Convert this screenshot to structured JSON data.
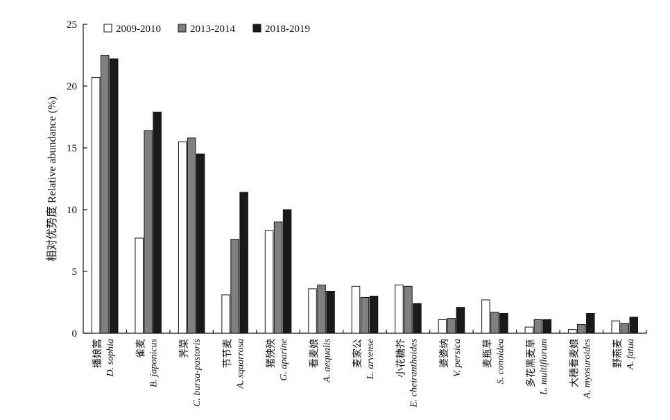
{
  "chart_data": {
    "type": "bar",
    "title": "",
    "ylabel": "相对优势度 Relative abundance (%)",
    "xlabel": "",
    "ylim": [
      0,
      25
    ],
    "yticks": [
      0,
      5,
      10,
      15,
      20,
      25
    ],
    "legend_position": "top-left",
    "grid": false,
    "categories": [
      {
        "cn": "播娘蒿",
        "sci": "D. sophia"
      },
      {
        "cn": "雀麦",
        "sci": "B. japonicus"
      },
      {
        "cn": "荠菜",
        "sci": "C. bursa-pastoris"
      },
      {
        "cn": "节节麦",
        "sci": "A. squarrosa"
      },
      {
        "cn": "猪殃殃",
        "sci": "G. aparine"
      },
      {
        "cn": "看麦娘",
        "sci": "A. aequalis"
      },
      {
        "cn": "麦家公",
        "sci": "L. arvense"
      },
      {
        "cn": "小花糖芥",
        "sci": "E. cheiranthoides"
      },
      {
        "cn": "婆婆纳",
        "sci": "V. persica"
      },
      {
        "cn": "麦瓶草",
        "sci": "S. conoidea"
      },
      {
        "cn": "多花黑麦草",
        "sci": "L. multiflorum"
      },
      {
        "cn": "大穗看麦娘",
        "sci": "A. myosuroides"
      },
      {
        "cn": "野燕麦",
        "sci": "A. fatua"
      }
    ],
    "series": [
      {
        "name": "2009-2010",
        "color": "#ffffff",
        "values": [
          20.7,
          7.7,
          15.5,
          3.1,
          8.3,
          3.6,
          3.8,
          3.9,
          1.1,
          2.7,
          0.5,
          0.3,
          1.0
        ]
      },
      {
        "name": "2013-2014",
        "color": "#808080",
        "values": [
          22.5,
          16.4,
          15.8,
          7.6,
          9.0,
          3.9,
          2.9,
          3.8,
          1.2,
          1.7,
          1.1,
          0.7,
          0.8
        ]
      },
      {
        "name": "2018-2019",
        "color": "#1a1a1a",
        "values": [
          22.2,
          17.9,
          14.5,
          11.4,
          10.0,
          3.4,
          3.0,
          2.4,
          2.1,
          1.6,
          1.1,
          1.6,
          1.3
        ]
      }
    ]
  }
}
